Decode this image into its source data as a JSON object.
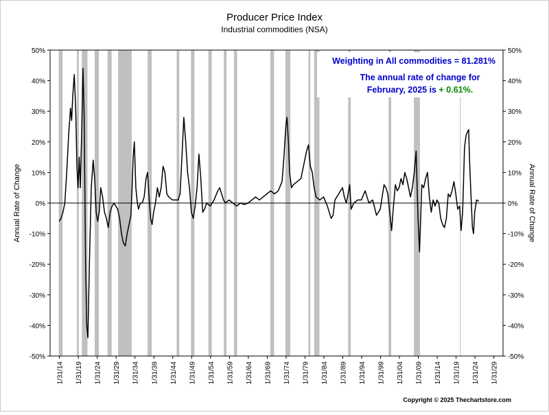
{
  "chart_data": {
    "type": "line",
    "title": "Producer Price Index",
    "subtitle": "Industrial commodities (NSA)",
    "ylabel": "Annual Rate of Change",
    "y2label": "Annual Rate of Change",
    "annotations": [
      "Weighting in All commodities = 81.281%",
      "The annual rate of change for",
      "February, 2025 is",
      "+ 0.61%."
    ],
    "annotation_colors": [
      "#0000cc",
      "#0000cc",
      "#0000cc",
      "#008800"
    ],
    "copyright": "Copyright © 2025 Thechartstore.com",
    "color": "#000000",
    "shade_color": "#c0c0c0",
    "recessions": [
      [
        1913.9,
        1914.9
      ],
      [
        1918.7,
        1919.2
      ],
      [
        1920.0,
        1921.5
      ],
      [
        1923.4,
        1924.5
      ],
      [
        1926.8,
        1927.9
      ],
      [
        1929.6,
        1933.2
      ],
      [
        1937.4,
        1938.5
      ],
      [
        1945.1,
        1945.8
      ],
      [
        1948.9,
        1949.8
      ],
      [
        1953.5,
        1954.4
      ],
      [
        1957.6,
        1958.3
      ],
      [
        1960.3,
        1961.1
      ],
      [
        1969.9,
        1970.9
      ],
      [
        1973.9,
        1975.2
      ],
      [
        1980.0,
        1980.5
      ],
      [
        1981.5,
        1982.9
      ],
      [
        1990.5,
        1991.2
      ],
      [
        2001.2,
        2001.9
      ],
      [
        2007.9,
        2009.5
      ],
      [
        2020.1,
        2020.3
      ]
    ],
    "x": [
      1914.0,
      1914.5,
      1915.0,
      1915.5,
      1916.0,
      1916.5,
      1917.0,
      1917.3,
      1917.6,
      1918.0,
      1918.4,
      1918.7,
      1919.0,
      1919.3,
      1919.6,
      1920.0,
      1920.3,
      1920.6,
      1921.0,
      1921.3,
      1921.6,
      1922.0,
      1922.5,
      1923.0,
      1923.4,
      1923.8,
      1924.2,
      1924.6,
      1925.0,
      1925.5,
      1926.0,
      1926.5,
      1927.0,
      1927.5,
      1928.0,
      1928.5,
      1929.0,
      1929.5,
      1930.0,
      1930.5,
      1931.0,
      1931.5,
      1932.0,
      1932.5,
      1933.0,
      1933.3,
      1933.6,
      1933.9,
      1934.3,
      1934.7,
      1935.0,
      1935.5,
      1936.0,
      1936.5,
      1937.0,
      1937.4,
      1937.8,
      1938.2,
      1938.6,
      1939.0,
      1939.5,
      1940.0,
      1940.5,
      1941.0,
      1941.5,
      1942.0,
      1942.5,
      1943.0,
      1944.0,
      1945.0,
      1945.5,
      1946.0,
      1946.5,
      1947.0,
      1947.5,
      1948.0,
      1948.5,
      1949.0,
      1949.5,
      1950.0,
      1950.5,
      1951.0,
      1951.5,
      1952.0,
      1952.5,
      1953.0,
      1954.0,
      1955.0,
      1956.0,
      1956.5,
      1957.0,
      1957.5,
      1958.0,
      1959.0,
      1960.0,
      1961.0,
      1962.0,
      1963.0,
      1964.0,
      1965.0,
      1966.0,
      1967.0,
      1968.0,
      1969.0,
      1970.0,
      1971.0,
      1972.0,
      1973.0,
      1973.5,
      1974.0,
      1974.3,
      1974.7,
      1975.0,
      1975.5,
      1976.0,
      1977.0,
      1978.0,
      1979.0,
      1979.5,
      1980.0,
      1980.5,
      1981.0,
      1981.5,
      1982.0,
      1983.0,
      1984.0,
      1985.0,
      1986.0,
      1986.5,
      1987.0,
      1988.0,
      1989.0,
      1989.5,
      1990.0,
      1990.5,
      1990.9,
      1991.3,
      1992.0,
      1993.0,
      1994.0,
      1995.0,
      1996.0,
      1997.0,
      1998.0,
      1999.0,
      2000.0,
      2000.5,
      2001.0,
      2001.5,
      2002.0,
      2002.5,
      2003.0,
      2003.5,
      2004.0,
      2004.5,
      2005.0,
      2005.5,
      2006.0,
      2006.5,
      2007.0,
      2007.5,
      2008.0,
      2008.5,
      2009.0,
      2009.4,
      2010.0,
      2010.5,
      2011.0,
      2011.5,
      2012.0,
      2012.5,
      2013.0,
      2013.5,
      2014.0,
      2014.5,
      2015.0,
      2015.5,
      2016.0,
      2016.5,
      2017.0,
      2017.5,
      2018.0,
      2018.5,
      2019.0,
      2019.5,
      2020.0,
      2020.4,
      2020.8,
      2021.0,
      2021.3,
      2021.7,
      2022.0,
      2022.4,
      2022.7,
      2023.0,
      2023.4,
      2023.7,
      2024.0,
      2024.5,
      2025.1
    ],
    "values": [
      -6,
      -5,
      -3,
      0,
      10,
      22,
      31,
      27,
      35,
      42,
      30,
      12,
      5,
      15,
      5,
      25,
      44,
      30,
      -20,
      -40,
      -44,
      -20,
      5,
      14,
      8,
      -3,
      -6,
      -3,
      5,
      2,
      -3,
      -5,
      -8,
      -3,
      -1,
      0,
      -1,
      -2,
      -5,
      -10,
      -13,
      -14,
      -10,
      -7,
      -4,
      5,
      15,
      20,
      5,
      0,
      -2,
      0,
      0,
      2,
      8,
      10,
      2,
      -5,
      -7,
      -3,
      0,
      5,
      2,
      5,
      12,
      10,
      3,
      2,
      1,
      1,
      1,
      3,
      15,
      28,
      20,
      10,
      5,
      -3,
      -5,
      -1,
      5,
      16,
      8,
      -3,
      -2,
      0,
      -1,
      1,
      4,
      5,
      3,
      1,
      0,
      1,
      0,
      -1,
      0,
      -0.5,
      0,
      1,
      2,
      1,
      2,
      3,
      4,
      3,
      4,
      7,
      15,
      25,
      28,
      20,
      10,
      5,
      6,
      7,
      8,
      14,
      17,
      19,
      12,
      10,
      5,
      2,
      1,
      2,
      -1,
      -5,
      -4,
      1,
      3,
      5,
      2,
      0,
      3,
      6,
      -2,
      0,
      1,
      1,
      4,
      0,
      1,
      -4,
      -2,
      6,
      5,
      3,
      -3,
      -9,
      -1,
      6,
      4,
      5,
      8,
      6,
      10,
      8,
      5,
      2,
      5,
      10,
      17,
      -5,
      -16,
      6,
      5,
      8,
      10,
      2,
      -3,
      1,
      -1,
      1,
      0,
      -5,
      -7,
      -8,
      -5,
      3,
      2,
      4,
      7,
      3,
      -2,
      -1,
      -9,
      -3,
      5,
      18,
      22,
      23,
      24,
      12,
      3,
      -8,
      -10,
      -3,
      1,
      0.61
    ],
    "xlim": [
      1911.6,
      2031.5
    ],
    "xticks": [
      {
        "value": 1914.08,
        "label": "1/31/14"
      },
      {
        "value": 1919.08,
        "label": "1/31/19"
      },
      {
        "value": 1924.08,
        "label": "1/31/24"
      },
      {
        "value": 1929.08,
        "label": "1/31/29"
      },
      {
        "value": 1934.08,
        "label": "1/31/34"
      },
      {
        "value": 1939.08,
        "label": "1/31/39"
      },
      {
        "value": 1944.08,
        "label": "1/31/44"
      },
      {
        "value": 1949.08,
        "label": "1/31/49"
      },
      {
        "value": 1954.08,
        "label": "1/31/54"
      },
      {
        "value": 1959.08,
        "label": "1/31/59"
      },
      {
        "value": 1964.08,
        "label": "1/31/64"
      },
      {
        "value": 1969.08,
        "label": "1/31/69"
      },
      {
        "value": 1974.08,
        "label": "1/31/74"
      },
      {
        "value": 1979.08,
        "label": "1/31/79"
      },
      {
        "value": 1984.08,
        "label": "1/31/84"
      },
      {
        "value": 1989.08,
        "label": "1/31/89"
      },
      {
        "value": 1994.08,
        "label": "1/31/94"
      },
      {
        "value": 1999.08,
        "label": "1/31/99"
      },
      {
        "value": 2004.08,
        "label": "1/31/04"
      },
      {
        "value": 2009.08,
        "label": "1/31/09"
      },
      {
        "value": 2014.08,
        "label": "1/31/14"
      },
      {
        "value": 2019.08,
        "label": "1/31/19"
      },
      {
        "value": 2024.08,
        "label": "1/31/24"
      },
      {
        "value": 2029.08,
        "label": "1/31/29"
      }
    ],
    "ylim": [
      -50,
      50
    ],
    "yticks": [
      {
        "value": -50,
        "label": "-50%"
      },
      {
        "value": -40,
        "label": "-40%"
      },
      {
        "value": -30,
        "label": "-30%"
      },
      {
        "value": -20,
        "label": "-20%"
      },
      {
        "value": -10,
        "label": "-10%"
      },
      {
        "value": 0,
        "label": "0%"
      },
      {
        "value": 10,
        "label": "10%"
      },
      {
        "value": 20,
        "label": "20%"
      },
      {
        "value": 30,
        "label": "30%"
      },
      {
        "value": 40,
        "label": "40%"
      },
      {
        "value": 50,
        "label": "50%"
      }
    ],
    "y2lim": [
      -50,
      50
    ],
    "y2ticks": [
      {
        "value": -50,
        "label": "-50%"
      },
      {
        "value": -40,
        "label": "-40%"
      },
      {
        "value": -30,
        "label": "-30%"
      },
      {
        "value": -20,
        "label": "-20%"
      },
      {
        "value": -10,
        "label": "-10%"
      },
      {
        "value": 0,
        "label": "0%"
      },
      {
        "value": 10,
        "label": "10%"
      },
      {
        "value": 20,
        "label": "20%"
      },
      {
        "value": 30,
        "label": "30%"
      },
      {
        "value": 40,
        "label": "40%"
      },
      {
        "value": 50,
        "label": "50%"
      }
    ],
    "zero_line": true,
    "grid": false
  }
}
